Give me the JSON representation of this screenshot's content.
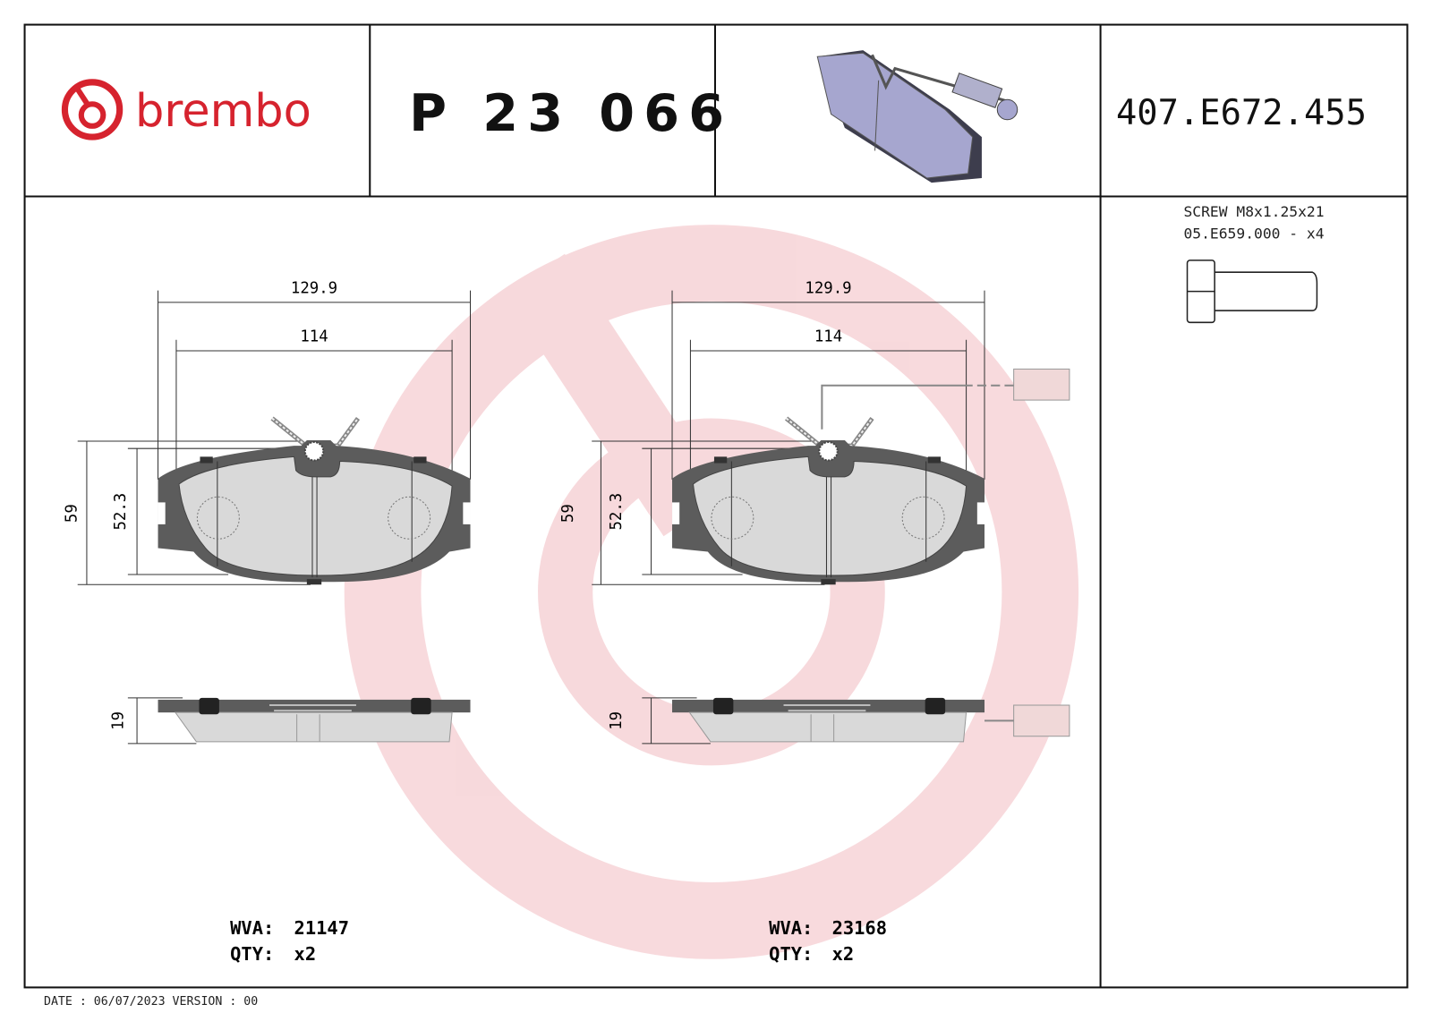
{
  "brand": {
    "logo_text": "brembo",
    "color": "#d6232e"
  },
  "header": {
    "part_number": "P 23 066",
    "code": "407.E672.455"
  },
  "accessory": {
    "line1": "SCREW M8x1.25x21",
    "line2": "05.E659.000 - x4"
  },
  "pads": [
    {
      "dim_width_overall": "129.9",
      "dim_width_inner": "114",
      "dim_height_overall": "59",
      "dim_height_inner": "52.3",
      "dim_thickness": "19",
      "wva_label": "WVA:",
      "wva": "21147",
      "qty_label": "QTY:",
      "qty": "x2",
      "wear_sensor": false
    },
    {
      "dim_width_overall": "129.9",
      "dim_width_inner": "114",
      "dim_height_overall": "59",
      "dim_height_inner": "52.3",
      "dim_thickness": "19",
      "wva_label": "WVA:",
      "wva": "23168",
      "qty_label": "QTY:",
      "qty": "x2",
      "wear_sensor": true
    }
  ],
  "footer": {
    "text": "DATE : 06/07/2023 VERSION : 00"
  },
  "colors": {
    "watermark": "#f3c9cd",
    "backing_plate": "#5c5c5c",
    "friction": "#d9d9d9",
    "iso_pad": "#a6a6cf"
  }
}
